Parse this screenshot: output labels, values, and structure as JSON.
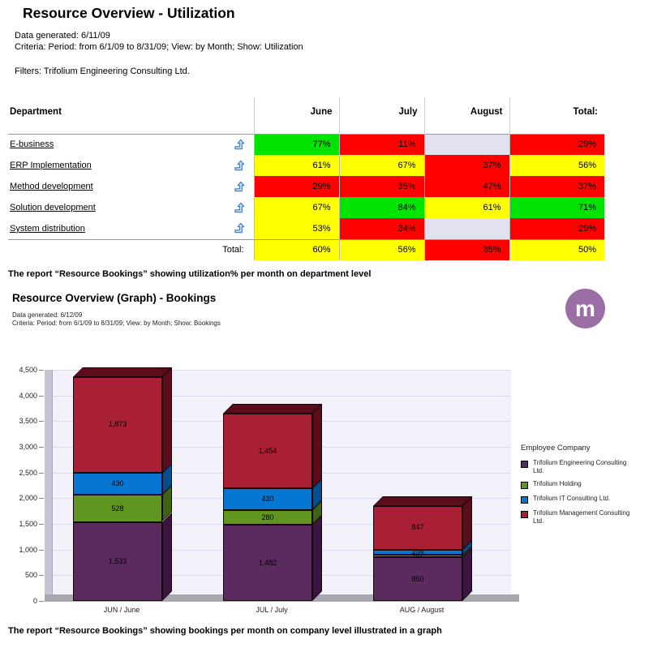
{
  "section1": {
    "title": "Resource Overview - Utilization",
    "generated": "Data generated: 6/11/09",
    "criteria": "Criteria: Period: from 6/1/09 to 8/31/09; View: by Month; Show: Utilization",
    "filters": "Filters: Trifolium Engineering Consulting Ltd.",
    "caption": "The report “Resource Bookings” showing utilization% per month on department level"
  },
  "table": {
    "columns": [
      "Department",
      "June",
      "July",
      "August",
      "Total:"
    ],
    "colors": {
      "green": "#00e400",
      "yellow": "#ffff00",
      "red": "#ff0000",
      "empty": "#e2e2ee"
    },
    "rows": [
      {
        "department": "E-business",
        "cells": [
          {
            "value": "77%",
            "color": "green"
          },
          {
            "value": "11%",
            "color": "red"
          },
          {
            "value": "",
            "color": "empty"
          },
          {
            "value": "29%",
            "color": "red"
          }
        ]
      },
      {
        "department": "ERP Implementation",
        "cells": [
          {
            "value": "61%",
            "color": "yellow"
          },
          {
            "value": "67%",
            "color": "yellow"
          },
          {
            "value": "37%",
            "color": "red"
          },
          {
            "value": "56%",
            "color": "yellow"
          }
        ]
      },
      {
        "department": "Method development",
        "cells": [
          {
            "value": "29%",
            "color": "red"
          },
          {
            "value": "35%",
            "color": "red"
          },
          {
            "value": "47%",
            "color": "red"
          },
          {
            "value": "37%",
            "color": "red"
          }
        ]
      },
      {
        "department": "Solution development",
        "cells": [
          {
            "value": "67%",
            "color": "yellow"
          },
          {
            "value": "84%",
            "color": "green"
          },
          {
            "value": "61%",
            "color": "yellow"
          },
          {
            "value": "71%",
            "color": "green"
          }
        ]
      },
      {
        "department": "System distribution",
        "cells": [
          {
            "value": "53%",
            "color": "yellow"
          },
          {
            "value": "34%",
            "color": "red"
          },
          {
            "value": "",
            "color": "empty"
          },
          {
            "value": "29%",
            "color": "red"
          }
        ]
      }
    ],
    "total_row": {
      "label": "Total:",
      "cells": [
        {
          "value": "60%",
          "color": "yellow"
        },
        {
          "value": "56%",
          "color": "yellow"
        },
        {
          "value": "35%",
          "color": "red"
        },
        {
          "value": "50%",
          "color": "yellow"
        }
      ]
    }
  },
  "section2": {
    "title": "Resource Overview (Graph) - Bookings",
    "generated": "Data generated: 6/12/09",
    "criteria": "Criteria: Period: from 6/1/09 to 8/31/09; View: by Month; Show: Bookings",
    "caption": "The report “Resource Bookings” showing bookings per month on company level illustrated in a graph"
  },
  "logo": {
    "letter": "m",
    "color": "#9b6fa6"
  },
  "chart_data": {
    "type": "bar",
    "stacked": true,
    "categories": [
      "JUN / June",
      "JUL / July",
      "AUG / August"
    ],
    "series": [
      {
        "name": "Trifolium Engineering Consulting Ltd.",
        "color": "#5b2a5f",
        "dark": "#3a1540",
        "values": [
          1533,
          1482,
          850
        ],
        "labels": [
          "1,533",
          "1,482",
          "850"
        ]
      },
      {
        "name": "Trifolium Holding",
        "color": "#60951f",
        "dark": "#3e6312",
        "values": [
          528,
          280,
          46
        ],
        "labels": [
          "528",
          "280",
          "46"
        ]
      },
      {
        "name": "Trifolium IT Consulting Ltd.",
        "color": "#0577d2",
        "dark": "#034f8e",
        "values": [
          430,
          430,
          104
        ],
        "labels": [
          "430",
          "430",
          "104"
        ]
      },
      {
        "name": "Trifolium Management Consulting Ltd.",
        "color": "#a91f33",
        "dark": "#5c0d1c",
        "values": [
          1873,
          1454,
          847
        ],
        "labels": [
          "1,873",
          "1,454",
          "847"
        ]
      }
    ],
    "legend_title": "Employee Company",
    "y_ticks": [
      "0",
      "500",
      "1,000",
      "1,500",
      "2,000",
      "2,500",
      "3,000",
      "3,500",
      "4,000",
      "4,500"
    ],
    "ylim": [
      0,
      4500
    ],
    "grid": true,
    "legend_position": "right"
  }
}
